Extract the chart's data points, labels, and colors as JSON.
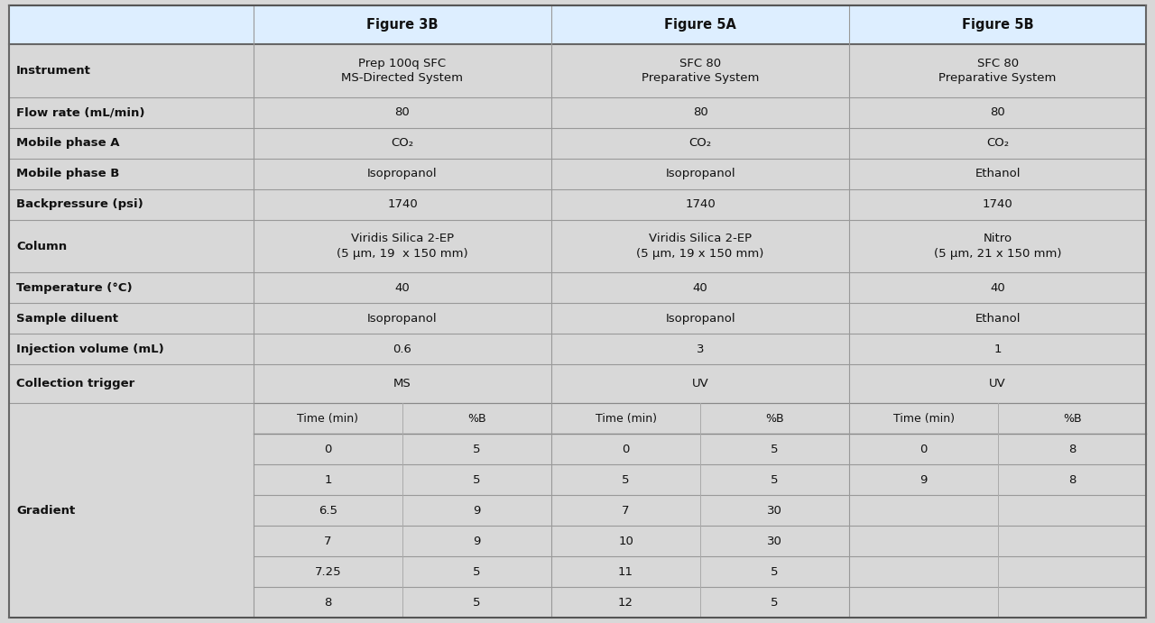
{
  "fig_bg": "#d8d8d8",
  "table_bg": "#d8d8d8",
  "header_bg": "#ddeeff",
  "row_bg": "#d8d8d8",
  "line_color_strong": "#888888",
  "line_color_light": "#aaaaaa",
  "text_color": "#111111",
  "header_row": [
    "",
    "Figure 3B",
    "Figure 5A",
    "Figure 5B"
  ],
  "rows": [
    {
      "label": "Instrument",
      "col1": "Prep 100q SFC\nMS-Directed System",
      "col2": "SFC 80\nPreparative System",
      "col3": "SFC 80\nPreparative System"
    },
    {
      "label": "Flow rate (mL/min)",
      "col1": "80",
      "col2": "80",
      "col3": "80"
    },
    {
      "label": "Mobile phase A",
      "col1": "CO₂",
      "col2": "CO₂",
      "col3": "CO₂"
    },
    {
      "label": "Mobile phase B",
      "col1": "Isopropanol",
      "col2": "Isopropanol",
      "col3": "Ethanol"
    },
    {
      "label": "Backpressure (psi)",
      "col1": "1740",
      "col2": "1740",
      "col3": "1740"
    },
    {
      "label": "Column",
      "col1": "Viridis Silica 2-EP\n(5 μm, 19  x 150 mm)",
      "col2": "Viridis Silica 2-EP\n(5 μm, 19 x 150 mm)",
      "col3": "Nitro\n(5 μm, 21 x 150 mm)"
    },
    {
      "label": "Temperature (°C)",
      "col1": "40",
      "col2": "40",
      "col3": "40"
    },
    {
      "label": "Sample diluent",
      "col1": "Isopropanol",
      "col2": "Isopropanol",
      "col3": "Ethanol"
    },
    {
      "label": "Injection volume (mL)",
      "col1": "0.6",
      "col2": "3",
      "col3": "1"
    },
    {
      "label": "Collection trigger",
      "col1": "MS",
      "col2": "UV",
      "col3": "UV"
    }
  ],
  "gradient_label": "Gradient",
  "gradient_sub_header": [
    "Time (min)",
    "%B",
    "Time (min)",
    "%B",
    "Time (min)",
    "%B"
  ],
  "gradient_3b": [
    [
      "0",
      "5"
    ],
    [
      "1",
      "5"
    ],
    [
      "6.5",
      "9"
    ],
    [
      "7",
      "9"
    ],
    [
      "7.25",
      "5"
    ],
    [
      "8",
      "5"
    ]
  ],
  "gradient_5a": [
    [
      "0",
      "5"
    ],
    [
      "5",
      "5"
    ],
    [
      "7",
      "30"
    ],
    [
      "10",
      "30"
    ],
    [
      "11",
      "5"
    ],
    [
      "12",
      "5"
    ]
  ],
  "gradient_5b": [
    [
      "0",
      "8"
    ],
    [
      "9",
      "8"
    ],
    [
      "",
      ""
    ],
    [
      "",
      ""
    ],
    [
      "",
      ""
    ],
    [
      "",
      ""
    ]
  ]
}
